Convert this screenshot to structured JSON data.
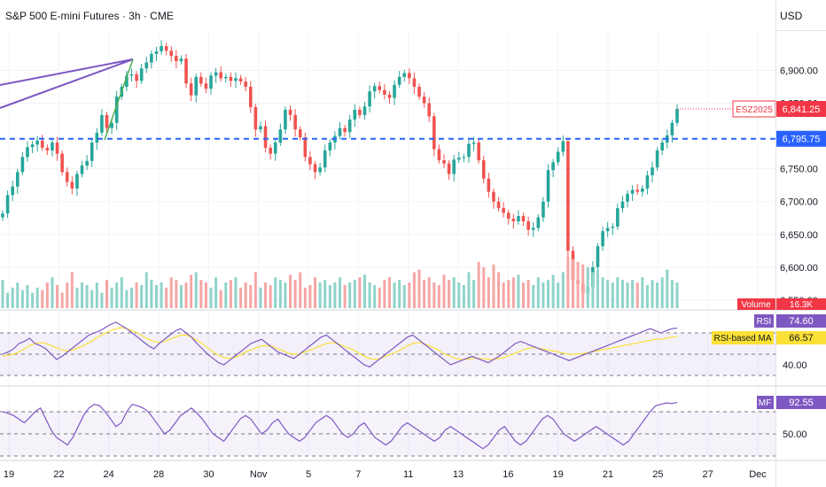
{
  "header": {
    "title": "S&P 500 E-mini Futures · 3h · CME",
    "currency": "USD"
  },
  "colors": {
    "up": "#26a69a",
    "down": "#ef5350",
    "upVol": "#8fd3ca",
    "downVol": "#f5a6a5",
    "blueLine": "#2962ff",
    "purple": "#7e57c2",
    "green": "#4caf50",
    "priceRed": "#f23645",
    "rsiYellow": "#fbe036",
    "grid": "#f0f3fa",
    "text": "#131722"
  },
  "chart_data": [
    {
      "type": "candlestick",
      "title": "S&P 500 E-mini Futures · 3h · CME",
      "ylim": [
        6535,
        6960
      ],
      "y_ticks": [
        "6,900.00",
        "6,850.00",
        "6,750.00",
        "6,700.00",
        "6,650.00",
        "6,600.00",
        "6,550.00"
      ],
      "y_tick_values": [
        6900,
        6850,
        6750,
        6700,
        6650,
        6600,
        6550
      ],
      "x_ticks": [
        "19",
        "22",
        "24",
        "28",
        "30",
        "Nov",
        "5",
        "7",
        "11",
        "13",
        "16",
        "19",
        "21",
        "25",
        "27",
        "Dec"
      ],
      "series": [
        {
          "name": "ESZ2025",
          "values": [
            6682,
            6710,
            6723,
            6745,
            6768,
            6783,
            6787,
            6793,
            6782,
            6778,
            6790,
            6773,
            6745,
            6730,
            6720,
            6742,
            6755,
            6762,
            6790,
            6805,
            6832,
            6812,
            6820,
            6860,
            6875,
            6892,
            6894,
            6884,
            6903,
            6912,
            6925,
            6929,
            6937,
            6930,
            6922,
            6914,
            6918,
            6880,
            6862,
            6890,
            6880,
            6872,
            6892,
            6897,
            6888,
            6890,
            6884,
            6888,
            6883,
            6875,
            6844,
            6810,
            6815,
            6782,
            6773,
            6790,
            6810,
            6840,
            6832,
            6810,
            6798,
            6768,
            6757,
            6745,
            6752,
            6778,
            6790,
            6800,
            6812,
            6806,
            6825,
            6840,
            6832,
            6845,
            6868,
            6876,
            6870,
            6863,
            6858,
            6878,
            6890,
            6896,
            6888,
            6875,
            6860,
            6850,
            6830,
            6780,
            6763,
            6758,
            6742,
            6764,
            6767,
            6768,
            6788,
            6790,
            6763,
            6735,
            6715,
            6700,
            6690,
            6683,
            6674,
            6670,
            6678,
            6670,
            6657,
            6660,
            6676,
            6700,
            6748,
            6760,
            6776,
            6792,
            6625,
            6580,
            6575,
            6560,
            6570,
            6600,
            6632,
            6655,
            6660,
            6662,
            6690,
            6700,
            6712,
            6718,
            6715,
            6720,
            6740,
            6752,
            6778,
            6790,
            6801,
            6820,
            6841.25
          ]
        },
        {
          "name": "Volume",
          "values": [
            0.55,
            0.3,
            0.4,
            0.5,
            0.35,
            0.45,
            0.3,
            0.4,
            0.35,
            0.5,
            0.6,
            0.45,
            0.3,
            0.5,
            0.7,
            0.4,
            0.5,
            0.45,
            0.35,
            0.5,
            0.3,
            0.55,
            0.4,
            0.5,
            0.6,
            0.35,
            0.4,
            0.5,
            0.45,
            0.7,
            0.55,
            0.45,
            0.5,
            0.4,
            0.6,
            0.55,
            0.45,
            0.5,
            0.65,
            0.7,
            0.55,
            0.5,
            0.4,
            0.6,
            0.35,
            0.5,
            0.55,
            0.6,
            0.4,
            0.5,
            0.45,
            0.7,
            0.4,
            0.5,
            0.45,
            0.6,
            0.55,
            0.5,
            0.65,
            0.55,
            0.7,
            0.4,
            0.45,
            0.6,
            0.5,
            0.55,
            0.45,
            0.5,
            0.6,
            0.45,
            0.5,
            0.55,
            0.6,
            0.65,
            0.5,
            0.45,
            0.4,
            0.55,
            0.6,
            0.5,
            0.55,
            0.45,
            0.5,
            0.7,
            0.75,
            0.55,
            0.6,
            0.5,
            0.45,
            0.65,
            0.55,
            0.6,
            0.5,
            0.45,
            0.7,
            0.55,
            0.9,
            0.8,
            0.6,
            0.85,
            0.7,
            0.5,
            0.55,
            0.6,
            0.65,
            0.5,
            0.55,
            0.45,
            0.6,
            0.5,
            0.55,
            0.65,
            0.5,
            0.7,
            1.0,
            0.95,
            0.9,
            0.85,
            0.8,
            0.7,
            0.75,
            0.6,
            0.55,
            0.5,
            0.6,
            0.55,
            0.5,
            0.55,
            0.5,
            0.6,
            0.45,
            0.55,
            0.5,
            0.6,
            0.75,
            0.55,
            0.5
          ]
        }
      ],
      "labels": {
        "last_price_tag": "ESZ2025",
        "last_price": "6,841.25",
        "level_line_value": 6795.75,
        "level_line": "6,795.75",
        "volume_tag": "Volume",
        "volume_value": "16.3K"
      },
      "drawings": {
        "pitchfork_color": "purple",
        "trendline_color": "green"
      }
    },
    {
      "type": "line",
      "title": "RSI",
      "ylim": [
        25,
        90
      ],
      "y_ticks": [
        "40.00"
      ],
      "y_tick_values": [
        40
      ],
      "series": [
        {
          "name": "RSI",
          "values": [
            50,
            52,
            55,
            60,
            62,
            65,
            60,
            58,
            55,
            50,
            45,
            48,
            52,
            56,
            60,
            64,
            68,
            70,
            72,
            75,
            78,
            80,
            77,
            74,
            70,
            66,
            62,
            58,
            55,
            60,
            64,
            68,
            72,
            74,
            70,
            66,
            60,
            55,
            50,
            46,
            42,
            40,
            44,
            48,
            52,
            56,
            60,
            62,
            64,
            60,
            56,
            52,
            50,
            48,
            46,
            50,
            54,
            58,
            62,
            66,
            68,
            64,
            60,
            56,
            52,
            48,
            44,
            40,
            38,
            42,
            46,
            50,
            54,
            58,
            62,
            66,
            68,
            64,
            60,
            56,
            52,
            48,
            44,
            40,
            42,
            44,
            46,
            48,
            46,
            44,
            42,
            45,
            48,
            52,
            56,
            60,
            62,
            60,
            58,
            56,
            54,
            52,
            50,
            48,
            46,
            44,
            46,
            48,
            50,
            52,
            54,
            56,
            58,
            60,
            62,
            64,
            66,
            68,
            70,
            72,
            74,
            72,
            70,
            72,
            74,
            74.6
          ]
        },
        {
          "name": "RSI-based MA",
          "values": [
            48,
            49,
            50,
            52,
            55,
            58,
            60,
            61,
            60,
            58,
            56,
            54,
            53,
            54,
            56,
            58,
            61,
            64,
            67,
            70,
            72,
            74,
            75,
            74,
            72,
            70,
            67,
            64,
            62,
            61,
            62,
            64,
            66,
            68,
            68,
            66,
            63,
            60,
            56,
            52,
            49,
            47,
            46,
            47,
            49,
            52,
            54,
            56,
            58,
            58,
            57,
            55,
            53,
            51,
            50,
            50,
            52,
            54,
            56,
            58,
            60,
            61,
            60,
            58,
            56,
            54,
            51,
            48,
            46,
            45,
            46,
            48,
            50,
            52,
            55,
            58,
            60,
            61,
            60,
            58,
            56,
            53,
            50,
            48,
            46,
            45,
            45,
            46,
            46,
            46,
            45,
            45,
            46,
            47,
            49,
            51,
            53,
            55,
            56,
            56,
            55,
            54,
            53,
            52,
            51,
            50,
            50,
            50,
            51,
            52,
            53,
            54,
            55,
            56,
            57,
            58,
            59,
            60,
            61,
            62,
            63,
            64,
            64,
            65,
            66,
            66.57
          ]
        }
      ],
      "labels": {
        "rsi_tag": "RSI",
        "rsi_value": "74.60",
        "ma_tag": "RSI-based MA",
        "ma_value": "66.57"
      }
    },
    {
      "type": "line",
      "title": "MF",
      "ylim": [
        20,
        110
      ],
      "y_ticks": [
        "50.00"
      ],
      "y_tick_values": [
        50
      ],
      "series": [
        {
          "name": "MF",
          "values": [
            80,
            78,
            75,
            70,
            65,
            72,
            80,
            85,
            70,
            55,
            45,
            40,
            35,
            45,
            60,
            75,
            85,
            90,
            88,
            80,
            70,
            60,
            65,
            80,
            90,
            88,
            85,
            80,
            70,
            60,
            50,
            55,
            65,
            75,
            80,
            85,
            78,
            70,
            60,
            50,
            45,
            40,
            50,
            60,
            70,
            75,
            70,
            60,
            50,
            55,
            65,
            70,
            60,
            50,
            45,
            40,
            45,
            55,
            65,
            70,
            75,
            70,
            60,
            50,
            45,
            50,
            60,
            65,
            55,
            45,
            40,
            35,
            40,
            50,
            60,
            65,
            60,
            55,
            50,
            45,
            40,
            45,
            55,
            60,
            55,
            50,
            45,
            40,
            35,
            30,
            35,
            45,
            55,
            60,
            50,
            40,
            35,
            40,
            50,
            60,
            70,
            75,
            70,
            60,
            50,
            45,
            40,
            45,
            50,
            55,
            60,
            55,
            50,
            45,
            40,
            35,
            40,
            50,
            60,
            70,
            80,
            88,
            90,
            92,
            91,
            92.55
          ]
        }
      ],
      "labels": {
        "mf_tag": "MF",
        "mf_value": "92.55"
      }
    }
  ]
}
